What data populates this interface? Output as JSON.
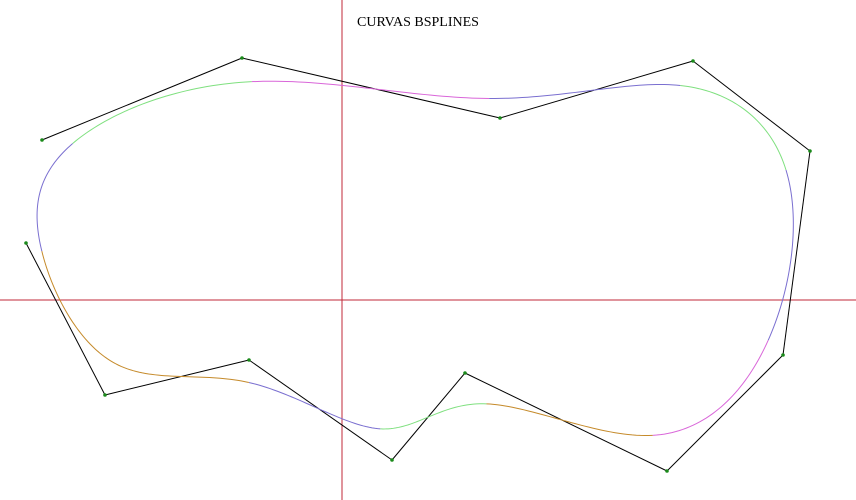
{
  "title": "CURVAS BSPLINES",
  "colors": {
    "axes": "#c0283a",
    "control_polygon": "#000000",
    "control_points": "#1a8a1a",
    "segment_colors": [
      "#d966d9",
      "#7a6fd0",
      "#7fe07f",
      "#7a6fd0",
      "#d966d9",
      "#c58a2a",
      "#7fe07f",
      "#7a6fd0",
      "#c58a2a",
      "#c58a2a",
      "#7a6fd0",
      "#7fe07f"
    ]
  },
  "control_points": [
    [
      -300,
      160
    ],
    [
      -100,
      242
    ],
    [
      158,
      182
    ],
    [
      351,
      239
    ],
    [
      468,
      149
    ],
    [
      441,
      -55
    ],
    [
      325,
      -171
    ],
    [
      123,
      -73
    ],
    [
      50,
      -160
    ],
    [
      -93,
      -60
    ],
    [
      -237,
      -95
    ],
    [
      -316,
      57
    ]
  ],
  "closed": true,
  "degree": 3
}
